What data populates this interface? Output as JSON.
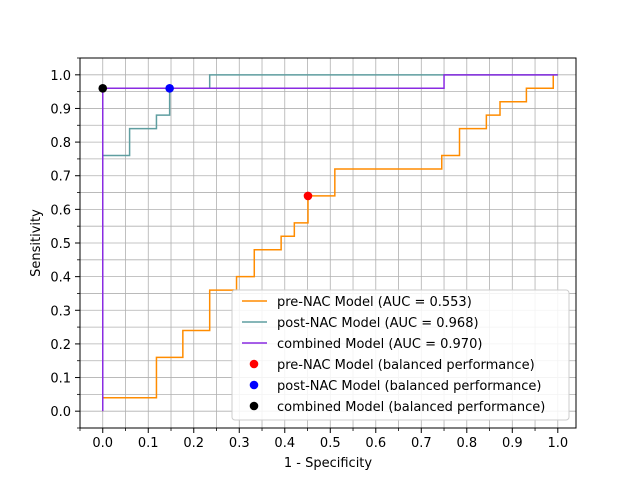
{
  "chart_data": {
    "type": "line",
    "title": "",
    "xlabel": "1 - Specificity",
    "ylabel": "Sensitivity",
    "xlim": [
      -0.05,
      1.04
    ],
    "ylim": [
      -0.05,
      1.05
    ],
    "grid": true,
    "minor_grid": true,
    "legend_placement": "lower right",
    "xticks": [
      "0.0",
      "0.1",
      "0.2",
      "0.3",
      "0.4",
      "0.5",
      "0.6",
      "0.7",
      "0.8",
      "0.9",
      "1.0"
    ],
    "yticks": [
      "0.0",
      "0.1",
      "0.2",
      "0.3",
      "0.4",
      "0.5",
      "0.6",
      "0.7",
      "0.8",
      "0.9",
      "1.0"
    ],
    "series": [
      {
        "name": "pre-NAC Model  (AUC = 0.553)",
        "color": "#ff8c00",
        "x": [
          0,
          0,
          0.118,
          0.118,
          0.176,
          0.176,
          0.235,
          0.235,
          0.294,
          0.294,
          0.333,
          0.333,
          0.392,
          0.392,
          0.421,
          0.421,
          0.451,
          0.451,
          0.51,
          0.51,
          0.745,
          0.745,
          0.784,
          0.784,
          0.843,
          0.843,
          0.873,
          0.873,
          0.931,
          0.931,
          0.99,
          0.99
        ],
        "y": [
          0,
          0.04,
          0.04,
          0.16,
          0.16,
          0.24,
          0.24,
          0.36,
          0.36,
          0.4,
          0.4,
          0.48,
          0.48,
          0.52,
          0.52,
          0.56,
          0.56,
          0.64,
          0.64,
          0.72,
          0.72,
          0.76,
          0.76,
          0.84,
          0.84,
          0.88,
          0.88,
          0.92,
          0.92,
          0.96,
          0.96,
          1.0
        ]
      },
      {
        "name": "post-NAC Model (AUC = 0.968)",
        "color": "#5f9ea0",
        "x": [
          0,
          0,
          0.059,
          0.059,
          0.118,
          0.118,
          0.147,
          0.147,
          0.235,
          0.235,
          1.0
        ],
        "y": [
          0,
          0.76,
          0.76,
          0.84,
          0.84,
          0.88,
          0.88,
          0.96,
          0.96,
          1.0,
          1.0
        ]
      },
      {
        "name": "combined Model (AUC = 0.970)",
        "color": "#8a2be2",
        "x": [
          0,
          0,
          0.75,
          0.75,
          1.0
        ],
        "y": [
          0,
          0.96,
          0.96,
          1.0,
          1.0
        ]
      }
    ],
    "points": [
      {
        "name": "pre-NAC Model (balanced performance)",
        "color": "#ff0000",
        "x": 0.451,
        "y": 0.64
      },
      {
        "name": "post-NAC Model (balanced performance)",
        "color": "#0000ff",
        "x": 0.147,
        "y": 0.96
      },
      {
        "name": "combined Model (balanced performance)",
        "color": "#000000",
        "x": 0.0,
        "y": 0.96
      }
    ]
  }
}
